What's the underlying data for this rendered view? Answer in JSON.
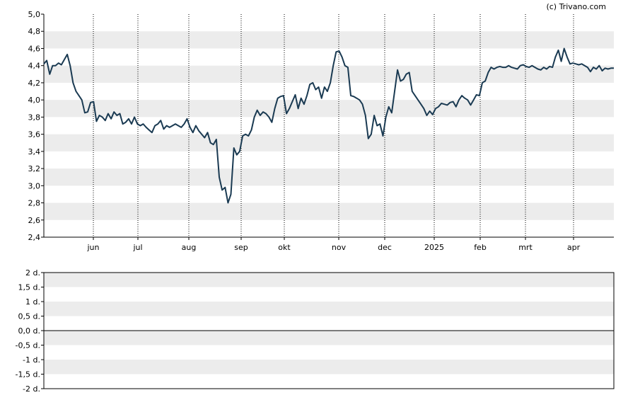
{
  "credit": "(c) Trivano.com",
  "chart_data": [
    {
      "type": "line",
      "ylim": [
        2.4,
        5.0
      ],
      "y_ticks": [
        "5,0",
        "4,8",
        "4,6",
        "4,4",
        "4,2",
        "4,0",
        "3,8",
        "3,6",
        "3,4",
        "3,2",
        "3,0",
        "2,8",
        "2,6",
        "2,4"
      ],
      "x_labels": [
        "jun",
        "jul",
        "aug",
        "sep",
        "okt",
        "nov",
        "dec",
        "2025",
        "feb",
        "mrt",
        "apr"
      ],
      "grid": true,
      "series_color": "#1a3a52",
      "series": [
        {
          "values": [
            4.42,
            4.46,
            4.3,
            4.4,
            4.4,
            4.43,
            4.41,
            4.47,
            4.53,
            4.4,
            4.2,
            4.1,
            4.05,
            4.0,
            3.85,
            3.86,
            3.97,
            3.98,
            3.75,
            3.82,
            3.8,
            3.76,
            3.84,
            3.78,
            3.86,
            3.82,
            3.84,
            3.72,
            3.74,
            3.78,
            3.72,
            3.8,
            3.72,
            3.7,
            3.72,
            3.68,
            3.65,
            3.62,
            3.7,
            3.72,
            3.76,
            3.66,
            3.7,
            3.68,
            3.7,
            3.72,
            3.7,
            3.68,
            3.72,
            3.78,
            3.68,
            3.62,
            3.7,
            3.64,
            3.6,
            3.56,
            3.62,
            3.5,
            3.48,
            3.54,
            3.1,
            2.95,
            2.98,
            2.8,
            2.9,
            3.44,
            3.36,
            3.4,
            3.58,
            3.6,
            3.58,
            3.65,
            3.8,
            3.88,
            3.82,
            3.86,
            3.84,
            3.8,
            3.74,
            3.9,
            4.02,
            4.04,
            4.05,
            3.84,
            3.9,
            3.98,
            4.06,
            3.9,
            4.02,
            3.95,
            4.05,
            4.18,
            4.2,
            4.12,
            4.15,
            4.02,
            4.15,
            4.1,
            4.2,
            4.4,
            4.56,
            4.57,
            4.5,
            4.4,
            4.38,
            4.05,
            4.04,
            4.02,
            4.0,
            3.95,
            3.82,
            3.55,
            3.6,
            3.82,
            3.7,
            3.72,
            3.58,
            3.8,
            3.92,
            3.85,
            4.1,
            4.35,
            4.22,
            4.24,
            4.3,
            4.32,
            4.1,
            4.05,
            4.0,
            3.95,
            3.9,
            3.82,
            3.87,
            3.83,
            3.9,
            3.92,
            3.96,
            3.95,
            3.94,
            3.97,
            3.98,
            3.92,
            4.0,
            4.05,
            4.02,
            4.0,
            3.94,
            4.0,
            4.06,
            4.05,
            4.2,
            4.22,
            4.32,
            4.38,
            4.36,
            4.38,
            4.39,
            4.38,
            4.38,
            4.4,
            4.38,
            4.37,
            4.36,
            4.4,
            4.41,
            4.39,
            4.38,
            4.4,
            4.38,
            4.36,
            4.35,
            4.38,
            4.36,
            4.39,
            4.38,
            4.5,
            4.58,
            4.45,
            4.6,
            4.5,
            4.42,
            4.43,
            4.42,
            4.41,
            4.42,
            4.4,
            4.38,
            4.33,
            4.38,
            4.36,
            4.4,
            4.34,
            4.37,
            4.36,
            4.37,
            4.37
          ]
        }
      ]
    },
    {
      "type": "line",
      "ylim": [
        -2,
        2
      ],
      "y_ticks": [
        "2 d.",
        "1,5 d.",
        "1 d.",
        "0,5 d.",
        "0,0 d.",
        "-0,5 d.",
        "-1 d.",
        "-1,5 d.",
        "-2 d."
      ],
      "grid": true,
      "baseline": 0,
      "series": []
    }
  ]
}
